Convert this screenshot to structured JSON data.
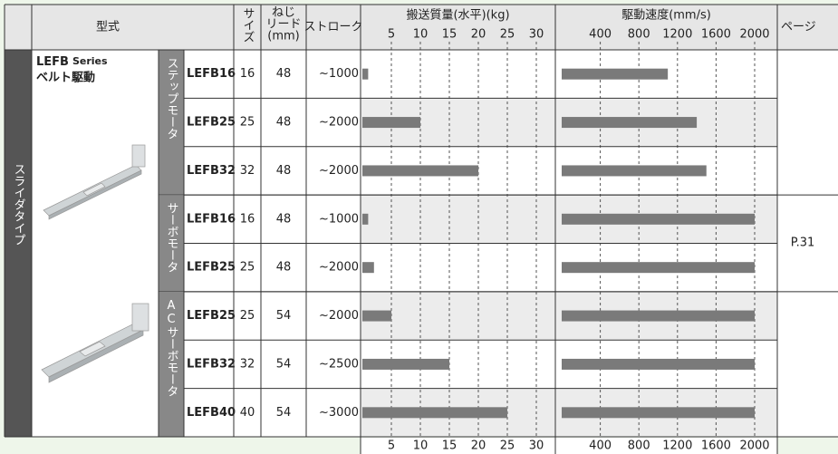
{
  "header": {
    "model": "型式",
    "size": "サイズ",
    "lead": [
      "ねじ",
      "リード",
      "(mm)"
    ],
    "stroke": "ストローク",
    "payload_title": "搬送質量(水平)(kg)",
    "speed_title": "駆動速度(mm/s)",
    "page": "ページ"
  },
  "side_label": "スライダタイプ",
  "series_name": "LEFB",
  "series_suffix": "Series",
  "series_subtitle": "ベルト駆動",
  "motor_groups": [
    {
      "label": "ステップモータ",
      "rows": [
        0,
        2
      ]
    },
    {
      "label": "サーボモータ",
      "rows": [
        3,
        4
      ]
    },
    {
      "label": "ACサーボモータ",
      "rows": [
        5,
        7
      ]
    }
  ],
  "page_ref": "P.31",
  "payload_axis": {
    "lim": [
      0,
      30
    ],
    "ticks": [
      5,
      10,
      15,
      20,
      25,
      30
    ]
  },
  "speed_axis": {
    "lim": [
      0,
      2000
    ],
    "ticks": [
      400,
      800,
      1200,
      1600,
      2000
    ]
  },
  "bar_color": "#7a7a7a",
  "rows": [
    {
      "model": "LEFB16",
      "size": 16,
      "lead": 48,
      "stroke": "~1000",
      "payload": 1,
      "speed": 1100
    },
    {
      "model": "LEFB25",
      "size": 25,
      "lead": 48,
      "stroke": "~2000",
      "payload": 10,
      "speed": 1400
    },
    {
      "model": "LEFB32",
      "size": 32,
      "lead": 48,
      "stroke": "~2000",
      "payload": 20,
      "speed": 1500
    },
    {
      "model": "LEFB16",
      "size": 16,
      "lead": 48,
      "stroke": "~1000",
      "payload": 1,
      "speed": 2000
    },
    {
      "model": "LEFB25",
      "size": 25,
      "lead": 48,
      "stroke": "~2000",
      "payload": 2,
      "speed": 2000
    },
    {
      "model": "LEFB25",
      "size": 25,
      "lead": 54,
      "stroke": "~2000",
      "payload": 5,
      "speed": 2000
    },
    {
      "model": "LEFB32",
      "size": 32,
      "lead": 54,
      "stroke": "~2500",
      "payload": 15,
      "speed": 2000
    },
    {
      "model": "LEFB40",
      "size": 40,
      "lead": 54,
      "stroke": "~3000",
      "payload": 25,
      "speed": 2000
    }
  ]
}
